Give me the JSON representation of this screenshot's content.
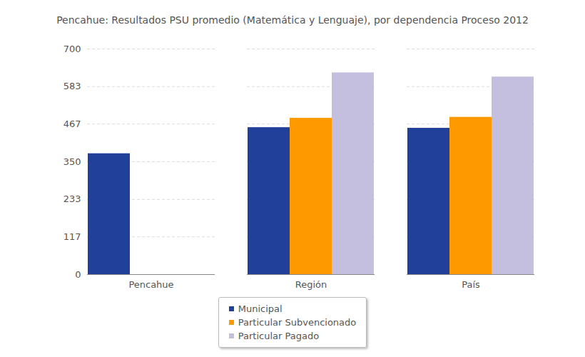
{
  "chart_data": {
    "type": "bar",
    "title": "Pencahue: Resultados PSU promedio (Matemática y Lenguaje), por dependencia Proceso 2012",
    "categories": [
      "Pencahue",
      "Región",
      "País"
    ],
    "series": [
      {
        "name": "Municipal",
        "color": "#21409a",
        "values": [
          375,
          456,
          454
        ]
      },
      {
        "name": "Particular Subvencionado",
        "color": "#ff9900",
        "values": [
          null,
          485,
          488
        ]
      },
      {
        "name": "Particular Pagado",
        "color": "#c4bfdf",
        "values": [
          null,
          626,
          613
        ]
      }
    ],
    "ylim": [
      0,
      700
    ],
    "yticks": [
      0,
      117,
      233,
      350,
      467,
      583,
      700
    ],
    "grid": true,
    "legend": "bottom"
  }
}
